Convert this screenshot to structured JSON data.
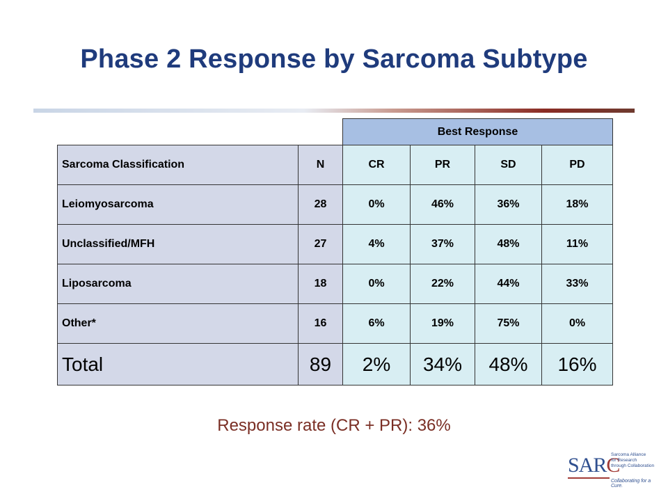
{
  "slide": {
    "title": "Phase 2 Response by Sarcoma Subtype",
    "note": "Response rate (CR + PR): 36%"
  },
  "table": {
    "group_header": "Best Response",
    "headers": [
      "Sarcoma Classification",
      "N",
      "CR",
      "PR",
      "SD",
      "PD"
    ],
    "rows": [
      [
        "Leiomyosarcoma",
        "28",
        "0%",
        "46%",
        "36%",
        "18%"
      ],
      [
        "Unclassified/MFH",
        "27",
        "4%",
        "37%",
        "48%",
        "11%"
      ],
      [
        "Liposarcoma",
        "18",
        "0%",
        "22%",
        "44%",
        "33%"
      ],
      [
        "Other*",
        "16",
        "6%",
        "19%",
        "75%",
        "0%"
      ]
    ],
    "total": [
      "Total",
      "89",
      "2%",
      "34%",
      "48%",
      "16%"
    ]
  },
  "logo": {
    "mark_prefix": "SAR",
    "mark_suffix": "C",
    "lines": [
      "Sarcoma Alliance",
      "for Research",
      "through Collaboration"
    ],
    "tagline": "Collaborating for a Cure."
  }
}
